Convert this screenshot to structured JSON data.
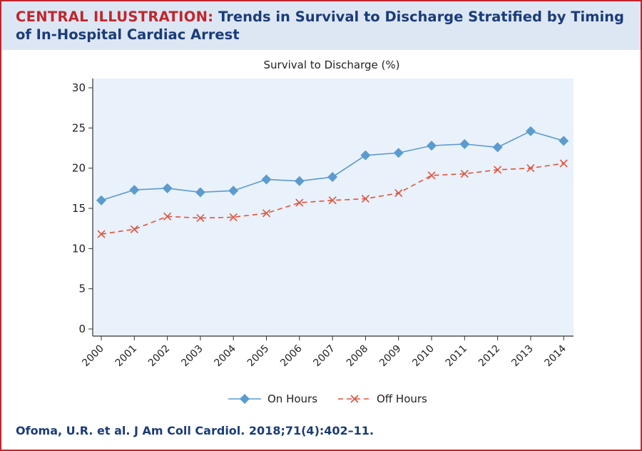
{
  "header": {
    "label": "CENTRAL ILLUSTRATION:",
    "title": "Trends in Survival to Discharge Stratified by Timing of In-Hospital Cardiac Arrest"
  },
  "citation": "Ofoma, U.R. et al. J Am Coll Cardiol. 2018;71(4):402–11.",
  "colors": {
    "accent_red": "#c0262d",
    "title_blue": "#1a3c79",
    "header_bg": "#dde6f3",
    "plot_bg": "#e9f1fa",
    "on_hours": "#5b9bcf",
    "off_hours": "#e0533e"
  },
  "chart_data": {
    "type": "line",
    "title": "Survival to Discharge (%)",
    "xlabel": "",
    "ylabel": "",
    "categories": [
      "2000",
      "2001",
      "2002",
      "2003",
      "2004",
      "2005",
      "2006",
      "2007",
      "2008",
      "2009",
      "2010",
      "2011",
      "2012",
      "2013",
      "2014"
    ],
    "yticks": [
      0,
      5,
      10,
      15,
      20,
      25,
      30
    ],
    "ylim": [
      0,
      30
    ],
    "grid": false,
    "legend_position": "bottom",
    "series": [
      {
        "name": "On Hours",
        "marker": "diamond",
        "line_style": "solid",
        "color": "#5b9bcf",
        "values": [
          16.0,
          17.3,
          17.5,
          17.0,
          17.2,
          18.6,
          18.4,
          18.9,
          21.6,
          21.9,
          22.8,
          23.0,
          22.6,
          24.6,
          23.4
        ]
      },
      {
        "name": "Off Hours",
        "marker": "x",
        "line_style": "dashed",
        "color": "#e0533e",
        "values": [
          11.8,
          12.4,
          14.0,
          13.8,
          13.9,
          14.4,
          15.7,
          16.0,
          16.2,
          16.9,
          19.1,
          19.3,
          19.8,
          20.0,
          20.6
        ]
      }
    ]
  }
}
